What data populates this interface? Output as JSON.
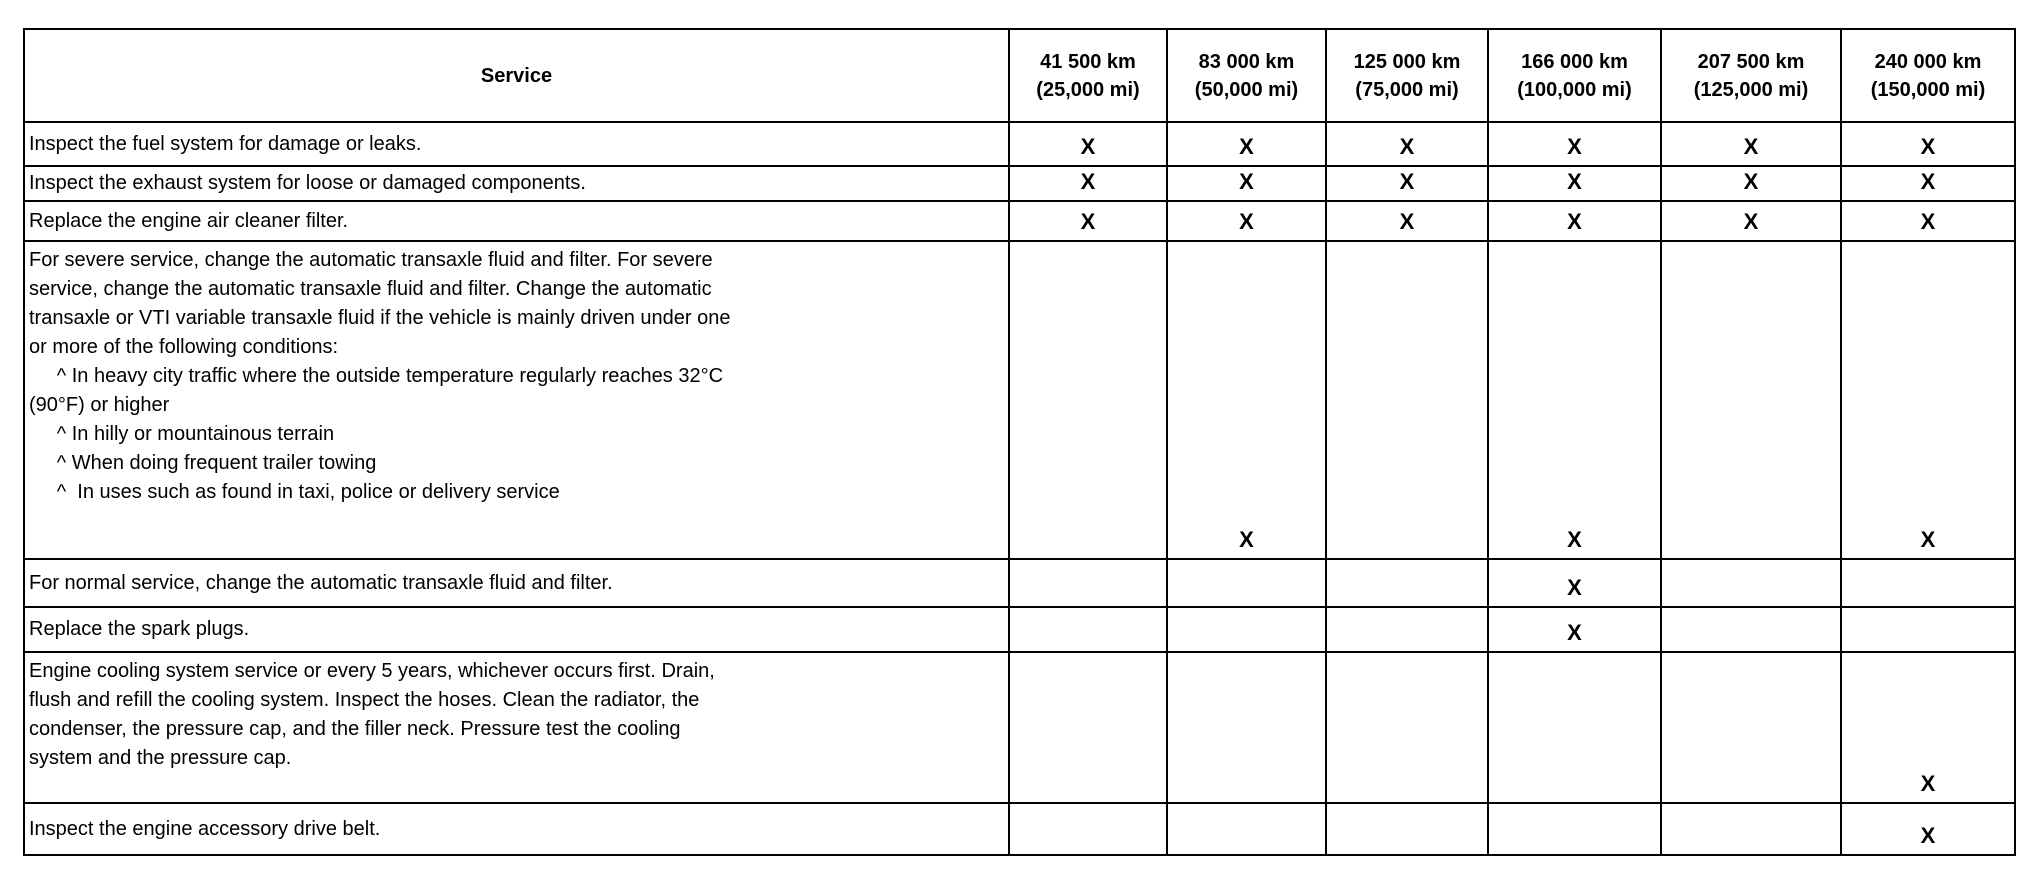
{
  "table": {
    "headers": [
      {
        "top": "Service",
        "bottom": ""
      },
      {
        "top": "41 500 km",
        "bottom": "(25,000 mi)"
      },
      {
        "top": "83 000 km",
        "bottom": "(50,000 mi)"
      },
      {
        "top": "125 000 km",
        "bottom": "(75,000 mi)"
      },
      {
        "top": "166 000 km",
        "bottom": "(100,000 mi)"
      },
      {
        "top": "207 500 km",
        "bottom": "(125,000 mi)"
      },
      {
        "top": "240 000 km",
        "bottom": "(150,000 mi)"
      }
    ],
    "rows": [
      {
        "lines": [
          "Inspect the fuel system for damage or leaks."
        ],
        "marks": [
          "X",
          "X",
          "X",
          "X",
          "X",
          "X"
        ]
      },
      {
        "lines": [
          "Inspect the exhaust system for loose or damaged components."
        ],
        "marks": [
          "X",
          "X",
          "X",
          "X",
          "X",
          "X"
        ]
      },
      {
        "lines": [
          "Replace the engine air cleaner filter."
        ],
        "marks": [
          "X",
          "X",
          "X",
          "X",
          "X",
          "X"
        ]
      },
      {
        "lines": [
          "For severe service, change the automatic transaxle fluid and filter. For severe",
          "service, change the automatic transaxle fluid and filter. Change the automatic",
          "transaxle or VTI variable transaxle fluid if the vehicle is mainly driven under one",
          "or more of the following conditions:",
          "     ^ In heavy city traffic where the outside temperature regularly reaches 32°C",
          "(90°F) or higher",
          "     ^ In hilly or mountainous terrain",
          "     ^ When doing frequent trailer towing",
          "     ^  In uses such as found in taxi, police or delivery service"
        ],
        "marks": [
          "",
          "X",
          "",
          "X",
          "",
          "X"
        ]
      },
      {
        "lines": [
          "For normal service, change the automatic transaxle fluid and filter."
        ],
        "marks": [
          "",
          "",
          "",
          "X",
          "",
          ""
        ]
      },
      {
        "lines": [
          "Replace the spark plugs."
        ],
        "marks": [
          "",
          "",
          "",
          "X",
          "",
          ""
        ]
      },
      {
        "lines": [
          "Engine cooling system service or every 5 years, whichever occurs first. Drain,",
          "flush and refill the cooling system. Inspect the hoses. Clean the radiator, the",
          "condenser, the pressure cap, and the filler neck. Pressure test the cooling",
          "system and the pressure cap."
        ],
        "marks": [
          "",
          "",
          "",
          "",
          "",
          "X"
        ]
      },
      {
        "lines": [
          "Inspect the engine accessory drive belt."
        ],
        "marks": [
          "",
          "",
          "",
          "",
          "",
          "X"
        ]
      }
    ]
  }
}
